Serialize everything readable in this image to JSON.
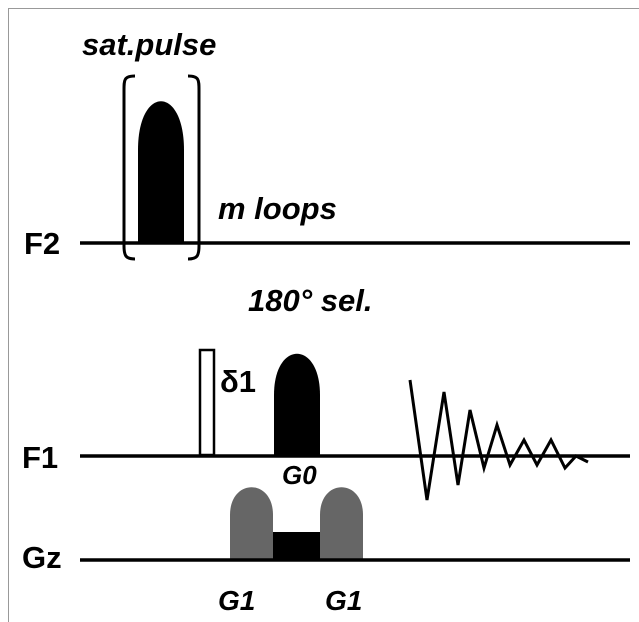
{
  "labels": {
    "sat_pulse": "sat.pulse",
    "loops": "m loops",
    "f2": "F2",
    "sel": "180° sel.",
    "delta": "δ1",
    "f1": "F1",
    "g0": "G0",
    "gz": "Gz",
    "g1_left": "G1",
    "g1_right": "G1"
  }
}
